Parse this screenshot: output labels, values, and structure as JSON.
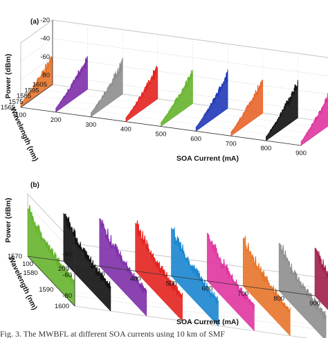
{
  "chart_data": [
    {
      "type": "3d-waterfall",
      "panel_label": "(a)",
      "zlabel": "Power (dBm)",
      "ylabel": "Wavelength (nm)",
      "xlabel": "SOA Current (mA)",
      "z_ticks": [
        "-20",
        "-40",
        "-60",
        "-80"
      ],
      "zlim": [
        -90,
        -20
      ],
      "y_ticks": [
        "1565",
        "1575",
        "1585",
        "1595",
        "1605"
      ],
      "ylim": [
        1565,
        1605
      ],
      "x_ticks": [
        "100",
        "200",
        "300",
        "400",
        "500",
        "600",
        "700",
        "800",
        "900"
      ],
      "xlim": [
        100,
        900
      ],
      "series": [
        {
          "current_mA": 100,
          "color": "#e8742a",
          "peak_dBm": -62
        },
        {
          "current_mA": 200,
          "color": "#7d2fa8",
          "peak_dBm": -58
        },
        {
          "current_mA": 300,
          "color": "#8e8e8e",
          "peak_dBm": -58
        },
        {
          "current_mA": 400,
          "color": "#e3231f",
          "peak_dBm": -58
        },
        {
          "current_mA": 500,
          "color": "#66b42e",
          "peak_dBm": -58
        },
        {
          "current_mA": 600,
          "color": "#2038b8",
          "peak_dBm": -56
        },
        {
          "current_mA": 700,
          "color": "#e8642a",
          "peak_dBm": -56
        },
        {
          "current_mA": 800,
          "color": "#111111",
          "peak_dBm": -54
        },
        {
          "current_mA": 900,
          "color": "#e0359e",
          "peak_dBm": -54
        }
      ]
    },
    {
      "type": "3d-waterfall",
      "panel_label": "(b)",
      "zlabel": "Power (dBm)",
      "ylabel": "Wavelength (nm)",
      "xlabel": "SOA Current (mA)",
      "z_ticks": [
        "-40",
        "-60",
        "-80"
      ],
      "zlim": [
        -90,
        -30
      ],
      "y_ticks": [
        "1570",
        "1580",
        "1590",
        "1600"
      ],
      "ylim": [
        1570,
        1600
      ],
      "x_ticks": [
        "100",
        "200",
        "300",
        "400",
        "500",
        "600",
        "700",
        "800",
        "900"
      ],
      "xlim": [
        100,
        900
      ],
      "series": [
        {
          "current_mA": 100,
          "color": "#66b42e",
          "peak_dBm": -44
        },
        {
          "current_mA": 200,
          "color": "#111111",
          "peak_dBm": -44
        },
        {
          "current_mA": 300,
          "color": "#7d2fa8",
          "peak_dBm": -44
        },
        {
          "current_mA": 400,
          "color": "#e3231f",
          "peak_dBm": -44
        },
        {
          "current_mA": 500,
          "color": "#1a86cf",
          "peak_dBm": -44
        },
        {
          "current_mA": 600,
          "color": "#e0359e",
          "peak_dBm": -44
        },
        {
          "current_mA": 700,
          "color": "#e8742a",
          "peak_dBm": -44
        },
        {
          "current_mA": 800,
          "color": "#8e8e8e",
          "peak_dBm": -44
        },
        {
          "current_mA": 900,
          "color": "#a11f4a",
          "peak_dBm": -44
        }
      ]
    }
  ],
  "caption": "Fig. 3.  The MWBFL at different SOA currents using 10 km of SMF"
}
